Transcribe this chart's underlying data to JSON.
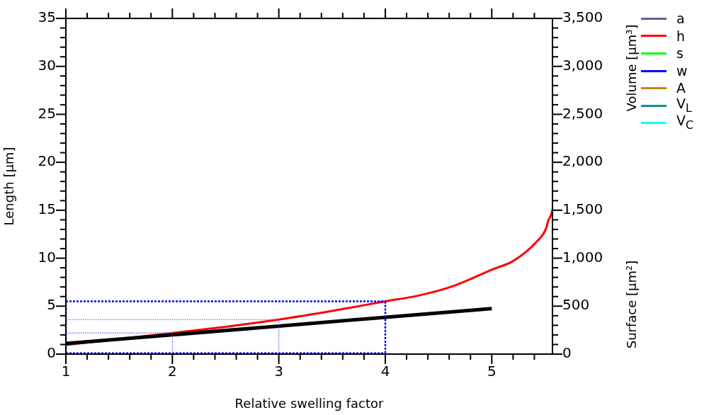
{
  "chart_data": {
    "type": "line",
    "xlabel": "Relative swelling factor",
    "ylabel": "Length [µm]",
    "y2label": "Volume [µm³]",
    "annotations": [
      "Surface [µm²]"
    ],
    "xlim": [
      1,
      5.57
    ],
    "xticks": [
      1,
      {
        "value": 1.2,
        "label": null
      },
      {
        "value": 1.4,
        "label": null
      },
      {
        "value": 1.6,
        "label": null
      },
      {
        "value": 1.8,
        "label": null
      },
      2,
      {
        "value": 2.2,
        "label": null
      },
      {
        "value": 2.4,
        "label": null
      },
      {
        "value": 2.6,
        "label": null
      },
      {
        "value": 2.8,
        "label": null
      },
      3,
      {
        "value": 3.2,
        "label": null
      },
      {
        "value": 3.4,
        "label": null
      },
      {
        "value": 3.6,
        "label": null
      },
      {
        "value": 3.8,
        "label": null
      },
      4,
      {
        "value": 4.2,
        "label": null
      },
      {
        "value": 4.4,
        "label": null
      },
      {
        "value": 4.6,
        "label": null
      },
      {
        "value": 4.8,
        "label": null
      },
      5,
      {
        "value": 5.2,
        "label": null
      },
      {
        "value": 5.4,
        "label": null
      }
    ],
    "ylim": [
      0,
      35
    ],
    "yticks": [
      0,
      {
        "value": 1,
        "label": null
      },
      {
        "value": 2,
        "label": null
      },
      {
        "value": 3,
        "label": null
      },
      {
        "value": 4,
        "label": null
      },
      5,
      {
        "value": 6,
        "label": null
      },
      {
        "value": 7,
        "label": null
      },
      {
        "value": 8,
        "label": null
      },
      {
        "value": 9,
        "label": null
      },
      10,
      {
        "value": 11,
        "label": null
      },
      {
        "value": 12,
        "label": null
      },
      {
        "value": 13,
        "label": null
      },
      {
        "value": 14,
        "label": null
      },
      15,
      {
        "value": 16,
        "label": null
      },
      {
        "value": 17,
        "label": null
      },
      {
        "value": 18,
        "label": null
      },
      {
        "value": 19,
        "label": null
      },
      20,
      {
        "value": 21,
        "label": null
      },
      {
        "value": 22,
        "label": null
      },
      {
        "value": 23,
        "label": null
      },
      {
        "value": 24,
        "label": null
      },
      25,
      {
        "value": 26,
        "label": null
      },
      {
        "value": 27,
        "label": null
      },
      {
        "value": 28,
        "label": null
      },
      {
        "value": 29,
        "label": null
      },
      30,
      {
        "value": 31,
        "label": null
      },
      {
        "value": 32,
        "label": null
      },
      {
        "value": 33,
        "label": null
      },
      {
        "value": 34,
        "label": null
      },
      35
    ],
    "y2lim": [
      0,
      3500
    ],
    "y2ticks": [
      0,
      {
        "value": 100,
        "label": null
      },
      {
        "value": 200,
        "label": null
      },
      {
        "value": 300,
        "label": null
      },
      {
        "value": 400,
        "label": null
      },
      500,
      {
        "value": 600,
        "label": null
      },
      {
        "value": 700,
        "label": null
      },
      {
        "value": 800,
        "label": null
      },
      {
        "value": 900,
        "label": null
      },
      {
        "value": 1000,
        "label": "1,000"
      },
      {
        "value": 1100,
        "label": null
      },
      {
        "value": 1200,
        "label": null
      },
      {
        "value": 1300,
        "label": null
      },
      {
        "value": 1400,
        "label": null
      },
      {
        "value": 1500,
        "label": "1,500"
      },
      {
        "value": 1600,
        "label": null
      },
      {
        "value": 1700,
        "label": null
      },
      {
        "value": 1800,
        "label": null
      },
      {
        "value": 1900,
        "label": null
      },
      {
        "value": 2000,
        "label": "2,000"
      },
      {
        "value": 2100,
        "label": null
      },
      {
        "value": 2200,
        "label": null
      },
      {
        "value": 2300,
        "label": null
      },
      {
        "value": 2400,
        "label": null
      },
      {
        "value": 2500,
        "label": "2,500"
      },
      {
        "value": 2600,
        "label": null
      },
      {
        "value": 2700,
        "label": null
      },
      {
        "value": 2800,
        "label": null
      },
      {
        "value": 2900,
        "label": null
      },
      {
        "value": 3000,
        "label": "3,000"
      },
      {
        "value": 3100,
        "label": null
      },
      {
        "value": 3200,
        "label": null
      },
      {
        "value": 3300,
        "label": null
      },
      {
        "value": 3400,
        "label": null
      },
      {
        "value": 3500,
        "label": "3,500"
      }
    ],
    "legend": "top right",
    "grid": false,
    "marker": "none",
    "line_style": "solid",
    "series": [
      {
        "name": "a",
        "color": "#6a5a9a"
      },
      {
        "name": "h",
        "color": "#ff0000",
        "x": [
          1,
          2,
          2.5,
          3,
          3.5,
          4,
          4.31,
          4.64,
          5,
          5.2,
          5.42,
          5.51,
          5.53,
          5.56,
          5.57
        ],
        "values": [
          0.95,
          2.2,
          2.85,
          3.6,
          4.5,
          5.5,
          6.1,
          7.1,
          8.8,
          9.7,
          11.7,
          13.1,
          13.9,
          14.6,
          15.1
        ]
      },
      {
        "name": "s",
        "color": "#00ff00"
      },
      {
        "name": "w",
        "color": "#0000ff"
      },
      {
        "name": "A",
        "color": "#c8860a"
      },
      {
        "name": "V$_{L}$",
        "color": "#118f8f"
      },
      {
        "name": "V$_{C}$",
        "color": "#00ffff"
      },
      {
        "color": "#000000",
        "x": [
          1,
          5
        ],
        "values": [
          1.1,
          4.75
        ]
      },
      {
        "color": "#0000ff",
        "line_style": "dashed",
        "x": [
          1,
          4
        ],
        "values": [
          5.5,
          5.5
        ]
      },
      {
        "color": "#0000ff",
        "line_style": "dashed",
        "x": [
          1,
          4
        ],
        "values": [
          0.1,
          0.1
        ]
      },
      {
        "color": "#0000ff",
        "line_style": "dashed",
        "x": [
          4,
          4
        ],
        "values": [
          0.1,
          5.5
        ]
      },
      {
        "color": "#0000ff",
        "line_style": "dashed",
        "x": [
          1,
          1
        ],
        "values": [
          0.1,
          5.5
        ]
      },
      {
        "color": "#5555ff",
        "line_style": "dotted",
        "x": [
          1,
          3
        ],
        "values": [
          3.6,
          3.6
        ]
      },
      {
        "color": "#5555ff",
        "line_style": "dotted",
        "x": [
          3,
          3
        ],
        "values": [
          0.1,
          3.6
        ]
      },
      {
        "color": "#5555ff",
        "line_style": "dotted",
        "x": [
          1,
          2
        ],
        "values": [
          2.2,
          2.2
        ]
      },
      {
        "color": "#5555ff",
        "line_style": "dotted",
        "x": [
          2,
          2
        ],
        "values": [
          0.1,
          2.2
        ]
      }
    ]
  }
}
